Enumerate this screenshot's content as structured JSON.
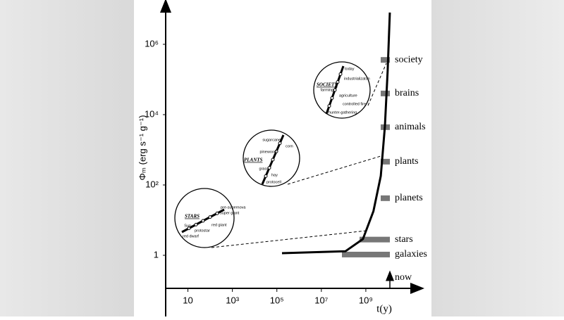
{
  "chart_data": {
    "type": "line",
    "x_log": true,
    "y_log": true,
    "xlabel": "t(y)",
    "ylabel": "Φₘ (erg s⁻¹ g⁻¹)",
    "xlim": [
      1,
      100000000000
    ],
    "ylim": [
      0.1,
      10000000
    ],
    "xticks": [
      10,
      {
        "value": 1000,
        "label": "10³"
      },
      {
        "value": 100000,
        "label": "10⁵"
      },
      {
        "value": 10000000,
        "label": "10⁷"
      },
      {
        "value": 1000000000,
        "label": "10⁹"
      }
    ],
    "yticks": [
      1,
      {
        "value": 100,
        "label": "10²"
      },
      {
        "value": 10000,
        "label": "10⁴"
      },
      {
        "value": 1000000,
        "label": "10⁶"
      }
    ],
    "series": [
      {
        "color": "#000000",
        "x": [
          170000,
          120000000,
          740000000,
          2200000000,
          4700000000,
          7200000000,
          9600000000,
          12000000000
        ],
        "values": [
          1.15,
          1.3,
          2.9,
          18,
          180,
          4600,
          180000,
          8000000
        ]
      }
    ],
    "bands": {
      "color": "#555555",
      "labels": [
        "society",
        "brains",
        "animals",
        "plants",
        "planets",
        "stars",
        "galaxies"
      ],
      "values": [
        360000,
        40000,
        4400,
        460,
        42,
        2.8,
        1.05
      ]
    },
    "now_label": "now",
    "insets": [
      {
        "title": "SOCIETY",
        "labels": [
          "today",
          "industrializaton",
          "farming",
          "agriculture",
          "controlled fire",
          "hunter-gathering"
        ]
      },
      {
        "title": "PLANTS",
        "labels": [
          "sugarcane",
          "corn",
          "pinewood",
          "grass",
          "hay",
          "protocell"
        ]
      },
      {
        "title": "STARS",
        "labels": [
          "pre-supernova",
          "super giant",
          "Sun",
          "red giant",
          "protostar",
          "red dwarf"
        ]
      }
    ]
  }
}
